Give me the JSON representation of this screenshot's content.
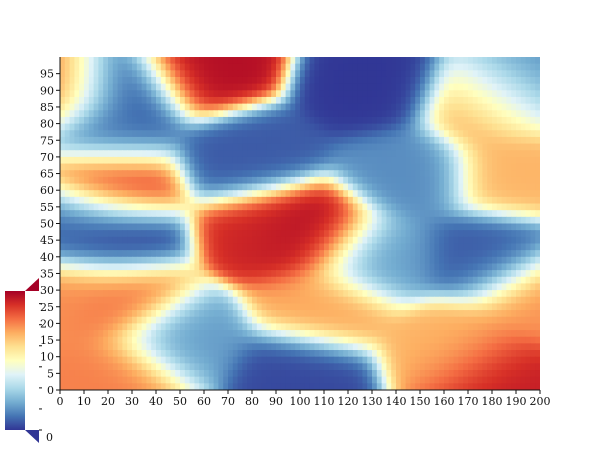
{
  "chart_data": {
    "type": "heatmap",
    "title": "",
    "xlabel": "",
    "ylabel": "",
    "xlim": [
      0,
      200
    ],
    "ylim": [
      0,
      100
    ],
    "x_ticks": [
      "0",
      "10",
      "20",
      "30",
      "40",
      "50",
      "60",
      "70",
      "80",
      "90",
      "100",
      "110",
      "120",
      "130",
      "140",
      "150",
      "160",
      "170",
      "180",
      "190",
      "200"
    ],
    "y_ticks": [
      "0",
      "5",
      "10",
      "15",
      "20",
      "25",
      "30",
      "35",
      "40",
      "45",
      "50",
      "55",
      "60",
      "65",
      "70",
      "75",
      "80",
      "85",
      "90",
      "95"
    ],
    "grid": false,
    "colormap": "RdYlBu_r",
    "colorscale": [
      "#313695",
      "#4575b4",
      "#74add1",
      "#abd9e9",
      "#e0f3f8",
      "#ffffbf",
      "#fee090",
      "#fdae61",
      "#f46d43",
      "#d73027",
      "#a50026"
    ],
    "value_range": [
      0,
      35
    ],
    "colorbar": {
      "ticks": [
        "0",
        "5",
        "10",
        "15",
        "20",
        "25",
        "30"
      ],
      "extend_min_label": "0",
      "extend_max_color": "#a50026",
      "extend_min_color": "#313695"
    },
    "hot_spots": [
      {
        "x": 105,
        "y": 47,
        "value": 35
      },
      {
        "x": 90,
        "y": 48,
        "value": 32
      },
      {
        "x": 60,
        "y": 97,
        "value": 34
      },
      {
        "x": 20,
        "y": 62,
        "value": 31
      },
      {
        "x": 180,
        "y": 4,
        "value": 33
      },
      {
        "x": 25,
        "y": 4,
        "value": 27
      },
      {
        "x": 25,
        "y": 27,
        "value": 28
      },
      {
        "x": 5,
        "y": 28,
        "value": 26
      },
      {
        "x": 180,
        "y": 85,
        "value": 26
      },
      {
        "x": 200,
        "y": 28,
        "value": 26
      },
      {
        "x": 110,
        "y": 25,
        "value": 25
      },
      {
        "x": 0,
        "y": 90,
        "value": 28
      },
      {
        "x": 190,
        "y": 65,
        "value": 24
      },
      {
        "x": 165,
        "y": 12,
        "value": 24
      }
    ],
    "cold_spots": [
      {
        "x": 20,
        "y": 45,
        "value": 0
      },
      {
        "x": 5,
        "y": 50,
        "value": 3
      },
      {
        "x": 25,
        "y": 90,
        "value": 1
      },
      {
        "x": 20,
        "y": 78,
        "value": 3
      },
      {
        "x": 130,
        "y": 91,
        "value": 0
      },
      {
        "x": 80,
        "y": 70,
        "value": 2
      },
      {
        "x": 100,
        "y": 5,
        "value": 1
      },
      {
        "x": 180,
        "y": 40,
        "value": 2
      },
      {
        "x": 190,
        "y": 90,
        "value": 4
      },
      {
        "x": 145,
        "y": 65,
        "value": 5
      },
      {
        "x": 130,
        "y": 40,
        "value": 6
      },
      {
        "x": 50,
        "y": 15,
        "value": 6
      }
    ]
  }
}
